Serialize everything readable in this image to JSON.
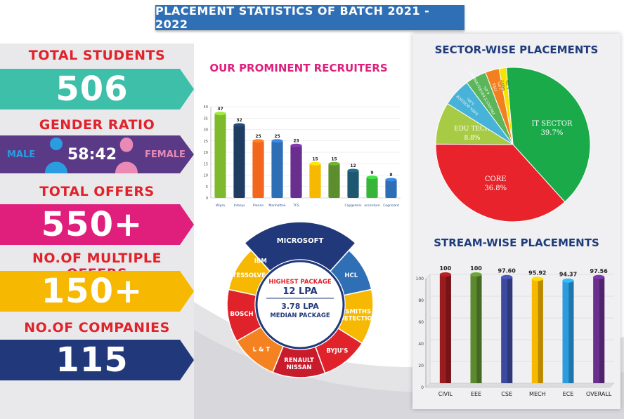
{
  "title": "PLACEMENT STATISTICS OF BATCH 2021 - 2022",
  "stats": {
    "total_students_label": "TOTAL STUDENTS",
    "total_students": "506",
    "gender_ratio_label": "GENDER RATIO",
    "male_label": "MALE",
    "female_label": "FEMALE",
    "gender_ratio": "58:42",
    "total_offers_label": "TOTAL OFFERS",
    "total_offers": "550+",
    "multiple_offers_label": "NO.OF MULTIPLE OFFERS",
    "multiple_offers": "150+",
    "companies_label": "NO.OF COMPANIES",
    "companies": "115"
  },
  "colors": {
    "teal": "#3dbfaa",
    "purple": "#5a3a86",
    "magenta": "#e01f7d",
    "yellow": "#f6b800",
    "navy": "#21397a",
    "red": "#e0232b",
    "blue": "#2f6fb5"
  },
  "package": {
    "highest_label": "HIGHEST PACKAGE",
    "highest_value": "12 LPA",
    "median_value": "3.78 LPA",
    "median_label": "MEDIAN PACKAGE"
  },
  "wheel": {
    "segments": [
      {
        "label": "MICROSOFT",
        "color": "#21397a"
      },
      {
        "label": "HCL",
        "color": "#2f6fb5"
      },
      {
        "label": "SMITHS DETECTION",
        "color": "#f6b800"
      },
      {
        "label": "BYJU'S",
        "color": "#e0232b"
      },
      {
        "label": "RENAULT NISSAN",
        "color": "#c81c2d"
      },
      {
        "label": "L & T",
        "color": "#f58220"
      },
      {
        "label": "BOSCH",
        "color": "#e0232b"
      },
      {
        "label": "TESSOLVE",
        "color": "#f6b800"
      },
      {
        "label": "IBM",
        "color": "#2f6fb5"
      }
    ]
  },
  "chart_data": [
    {
      "type": "bar",
      "title": "OUR PROMINENT RECRUITERS",
      "categories": [
        "Wipro",
        "Infosys",
        "Pierian",
        "Manhattan",
        "TCS",
        "",
        "",
        "Capgemini",
        "accenture",
        "Cognizant"
      ],
      "values": [
        37,
        32,
        25,
        25,
        23,
        15,
        15,
        12,
        9,
        8
      ],
      "colors": [
        "#7fba2e",
        "#1f3c63",
        "#f2661e",
        "#2e6eb6",
        "#6a2e8e",
        "#f6b800",
        "#5c8e2e",
        "#1d5870",
        "#36b53a",
        "#2e6eb6"
      ],
      "ylim": [
        0,
        40
      ],
      "yticks": [
        0,
        5,
        10,
        15,
        20,
        25,
        30,
        35,
        40
      ]
    },
    {
      "type": "pie",
      "title": "SECTOR-WISE PLACEMENTS",
      "labels": [
        "IT SECTOR",
        "CORE",
        "EDU TECH",
        "DATA SCIENCE",
        "PRODUCT DEVELOPMENT",
        "ITES",
        "GOVT"
      ],
      "display": [
        "39.7%",
        "36.8%",
        "8.8%",
        "5.9%",
        "4.4%",
        "2.9%",
        "1.5%"
      ],
      "values": [
        39.7,
        36.8,
        8.8,
        5.9,
        4.4,
        2.9,
        1.5
      ],
      "colors": [
        "#1aaa4a",
        "#e8232b",
        "#a8cb45",
        "#48b3d8",
        "#5bb65a",
        "#f2801f",
        "#f4e400"
      ]
    },
    {
      "type": "bar",
      "title": "STREAM-WISE PLACEMENTS",
      "categories": [
        "CIVIL",
        "EEE",
        "CSE",
        "MECH",
        "ECE",
        "OVERALL"
      ],
      "values": [
        100,
        100,
        97.6,
        95.92,
        94.37,
        97.56
      ],
      "display": [
        "100",
        "100",
        "97.60",
        "95.92",
        "94.37",
        "97.56"
      ],
      "colors": [
        "#9b1b1f",
        "#5c8a2e",
        "#3e4aa0",
        "#f6b800",
        "#2a9de0",
        "#6a2e8e"
      ],
      "ylim": [
        0,
        100
      ],
      "yticks": [
        0,
        20,
        40,
        60,
        80,
        100
      ]
    }
  ]
}
